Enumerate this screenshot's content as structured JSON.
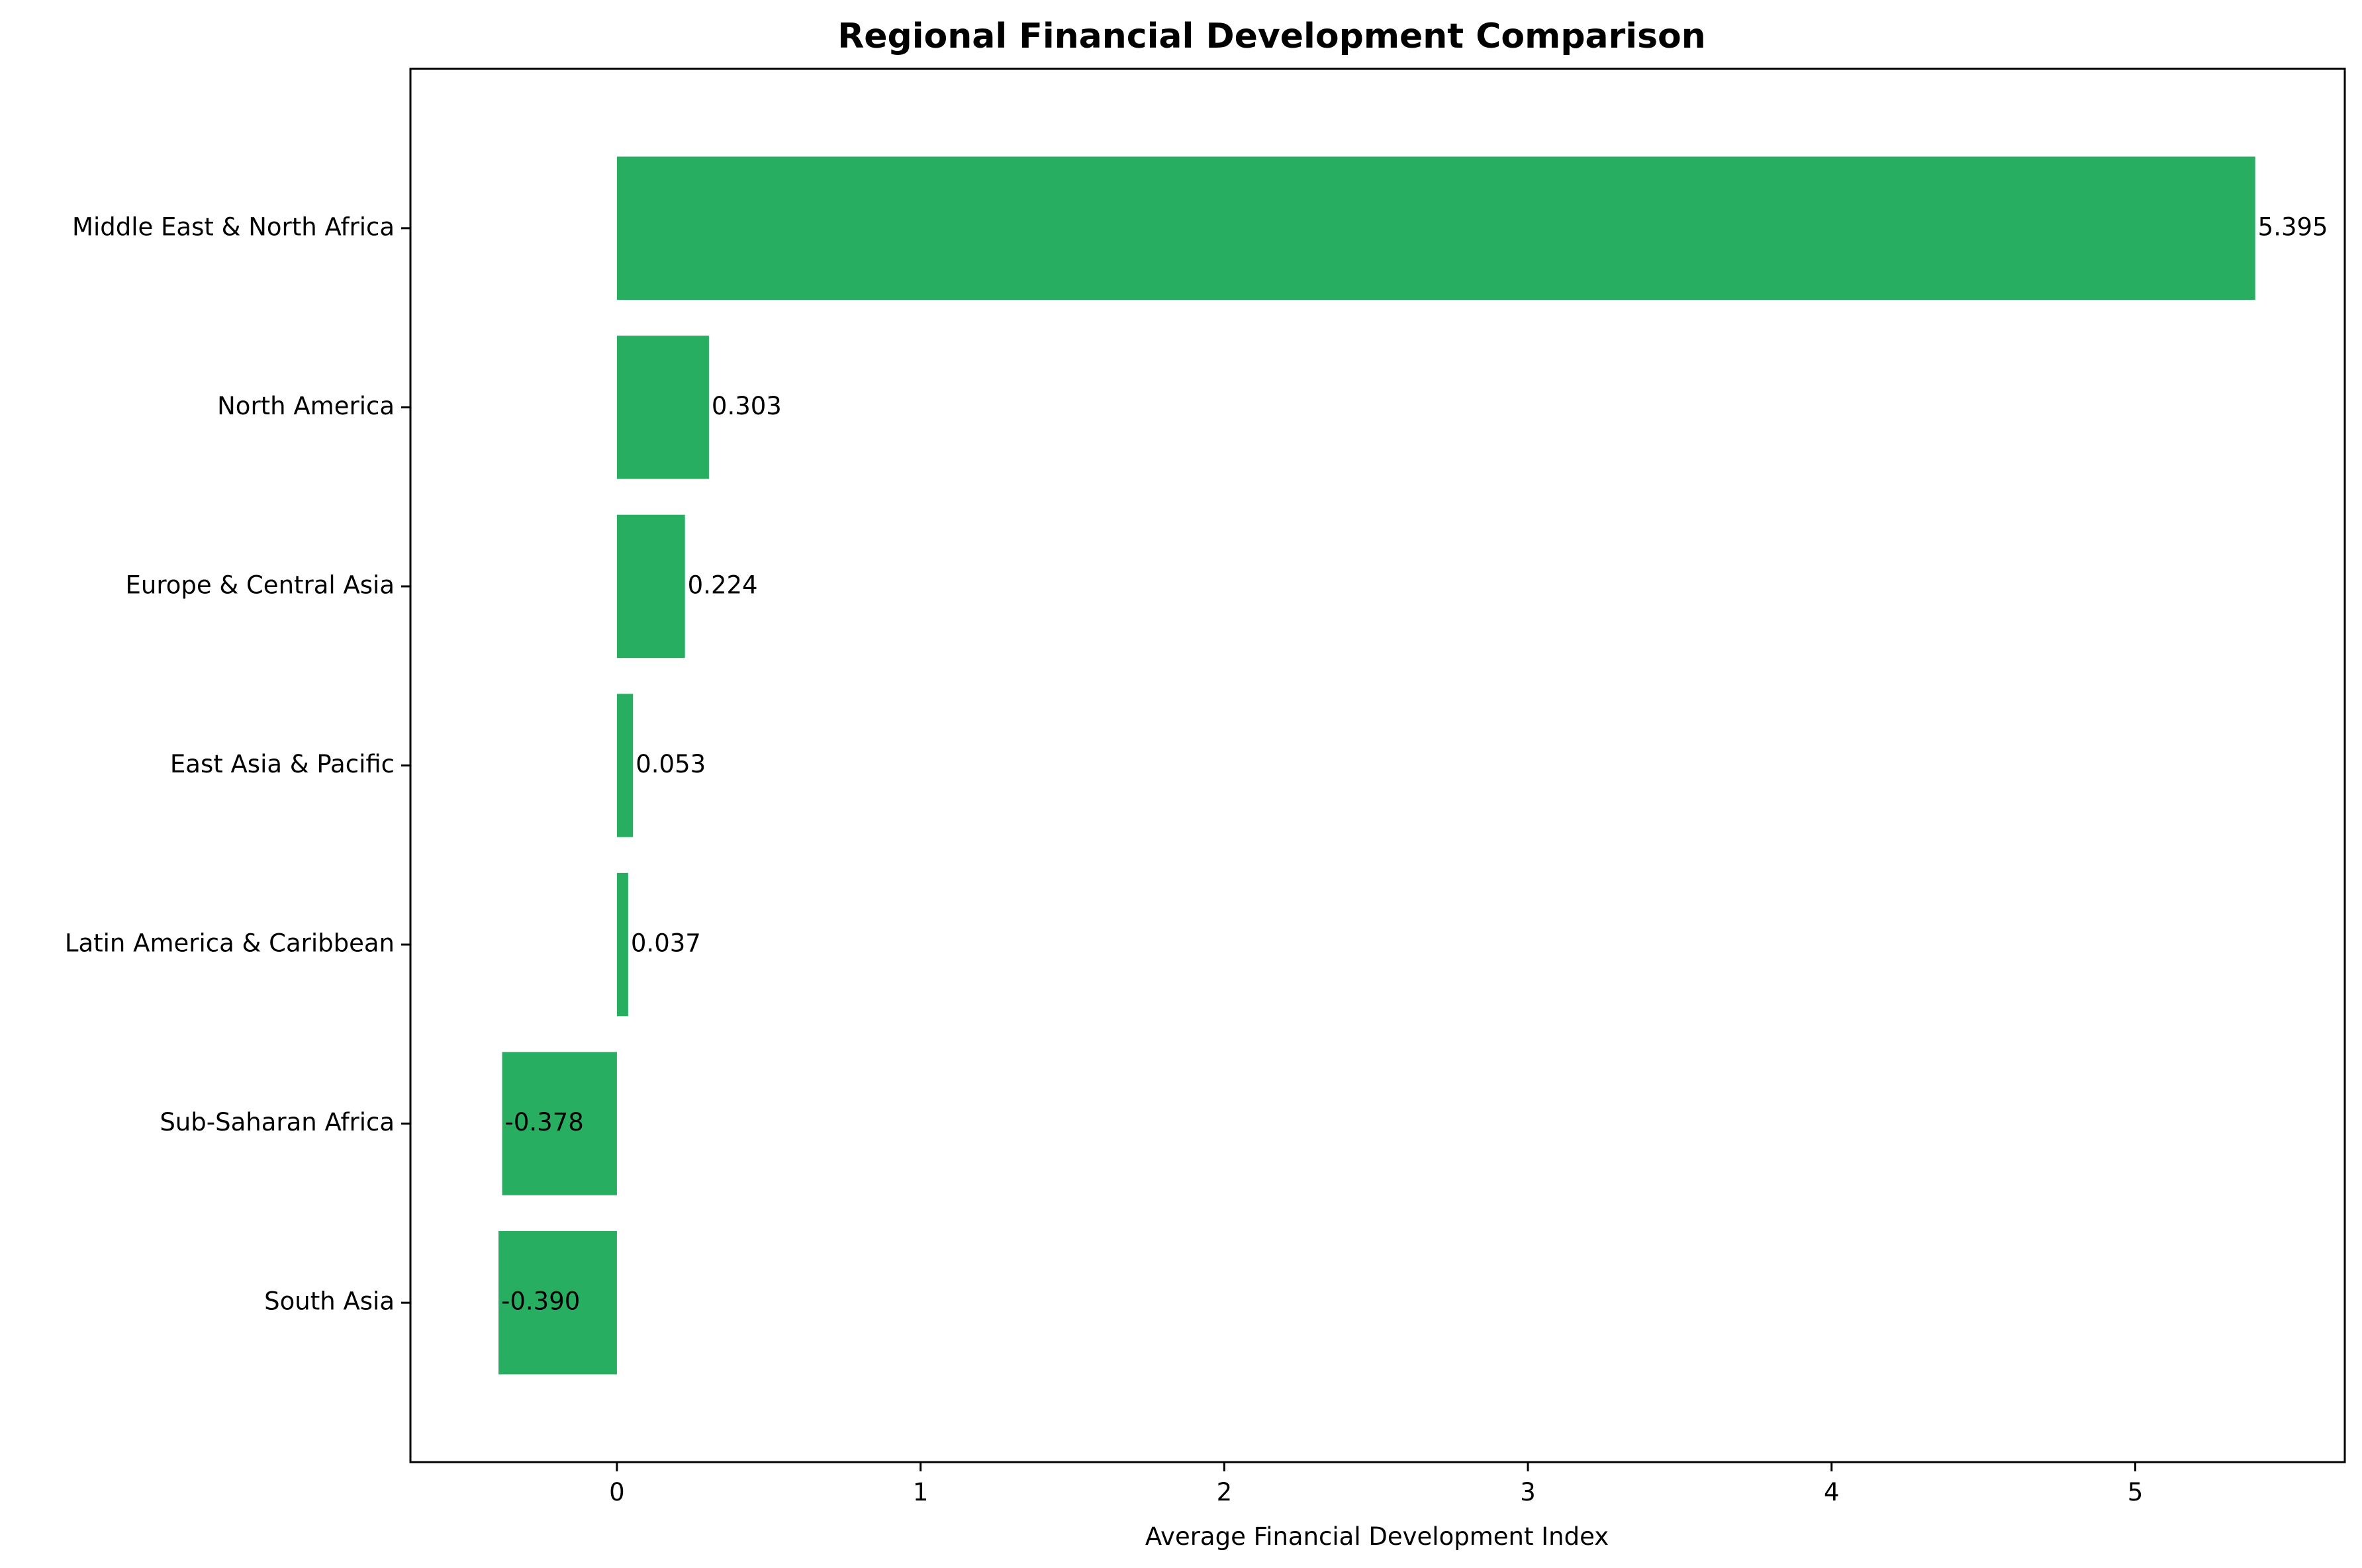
{
  "chart_data": {
    "type": "bar",
    "orientation": "horizontal",
    "title": "Regional Financial Development Comparison",
    "xlabel": "Average Financial Development Index",
    "ylabel": "",
    "categories": [
      "Middle East & North Africa",
      "North America",
      "Europe & Central Asia",
      "East Asia & Pacific",
      "Latin America & Caribbean",
      "Sub-Saharan Africa",
      "South Asia"
    ],
    "values": [
      5.395,
      0.303,
      0.224,
      0.053,
      0.037,
      -0.378,
      -0.39
    ],
    "data_labels": [
      "5.395",
      "0.303",
      "0.224",
      "0.053",
      "0.037",
      "-0.378",
      "-0.390"
    ],
    "xlim": [
      -0.68,
      5.69
    ],
    "xticks": [
      0,
      1,
      2,
      3,
      4,
      5
    ],
    "xtick_labels": [
      "0",
      "1",
      "2",
      "3",
      "4",
      "5"
    ],
    "bar_color": "#27ae60",
    "grid": false,
    "legend": "none"
  }
}
